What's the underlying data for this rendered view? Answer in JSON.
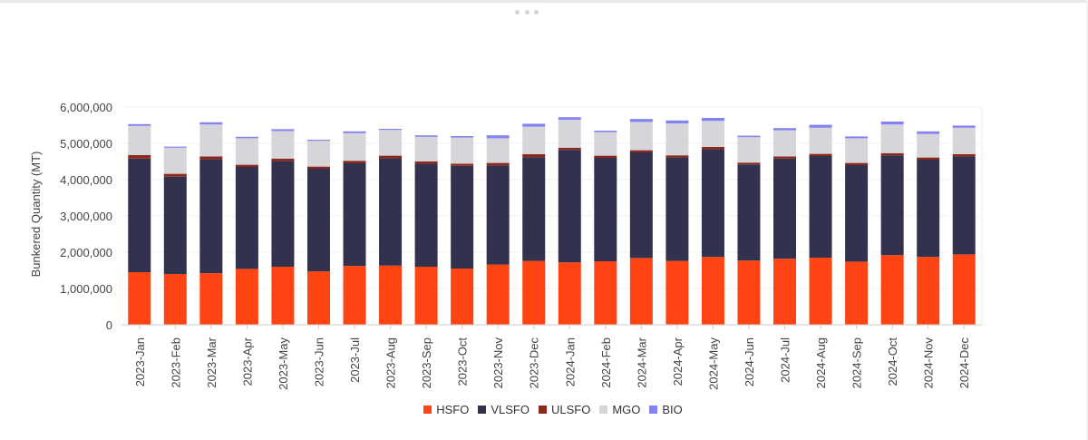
{
  "chart_data": {
    "type": "bar",
    "stacked": true,
    "title": "",
    "xlabel": "",
    "ylabel": "Bunkered Quantity (MT)",
    "ylim": [
      0,
      6000000
    ],
    "yticks": [
      0,
      1000000,
      2000000,
      3000000,
      4000000,
      5000000,
      6000000
    ],
    "ytick_labels": [
      "0",
      "1,000,000",
      "2,000,000",
      "3,000,000",
      "4,000,000",
      "5,000,000",
      "6,000,000"
    ],
    "grid": true,
    "legend_position": "bottom-center",
    "categories": [
      "2023-Jan",
      "2023-Feb",
      "2023-Mar",
      "2023-Apr",
      "2023-May",
      "2023-Jun",
      "2023-Jul",
      "2023-Aug",
      "2023-Sep",
      "2023-Oct",
      "2023-Nov",
      "2023-Dec",
      "2024-Jan",
      "2024-Feb",
      "2024-Mar",
      "2024-Apr",
      "2024-May",
      "2024-Jun",
      "2024-Jul",
      "2024-Aug",
      "2024-Sep",
      "2024-Oct",
      "2024-Nov",
      "2024-Dec"
    ],
    "series": [
      {
        "name": "HSFO",
        "color": "#ff4414",
        "values": [
          1450000,
          1400000,
          1420000,
          1540000,
          1600000,
          1470000,
          1620000,
          1630000,
          1600000,
          1550000,
          1660000,
          1760000,
          1720000,
          1750000,
          1840000,
          1760000,
          1870000,
          1770000,
          1820000,
          1850000,
          1740000,
          1920000,
          1870000,
          1940000
        ]
      },
      {
        "name": "VLSFO",
        "color": "#32324f",
        "values": [
          3130000,
          2680000,
          3140000,
          2810000,
          2910000,
          2830000,
          2830000,
          2960000,
          2840000,
          2830000,
          2730000,
          2860000,
          3100000,
          2850000,
          2910000,
          2850000,
          2970000,
          2650000,
          2760000,
          2800000,
          2660000,
          2750000,
          2680000,
          2700000
        ]
      },
      {
        "name": "ULSFO",
        "color": "#8b2a1c",
        "values": [
          100000,
          80000,
          80000,
          60000,
          70000,
          60000,
          70000,
          70000,
          60000,
          60000,
          70000,
          80000,
          60000,
          60000,
          60000,
          60000,
          60000,
          50000,
          60000,
          60000,
          60000,
          60000,
          60000,
          60000
        ]
      },
      {
        "name": "MGO",
        "color": "#d6d6da",
        "values": [
          800000,
          720000,
          880000,
          730000,
          760000,
          710000,
          760000,
          710000,
          680000,
          720000,
          680000,
          760000,
          770000,
          650000,
          780000,
          880000,
          720000,
          700000,
          720000,
          720000,
          680000,
          790000,
          650000,
          730000
        ]
      },
      {
        "name": "BIO",
        "color": "#8282f2",
        "values": [
          50000,
          30000,
          60000,
          40000,
          50000,
          30000,
          50000,
          30000,
          40000,
          40000,
          80000,
          80000,
          70000,
          40000,
          80000,
          80000,
          80000,
          40000,
          60000,
          80000,
          50000,
          80000,
          70000,
          60000
        ]
      }
    ]
  }
}
